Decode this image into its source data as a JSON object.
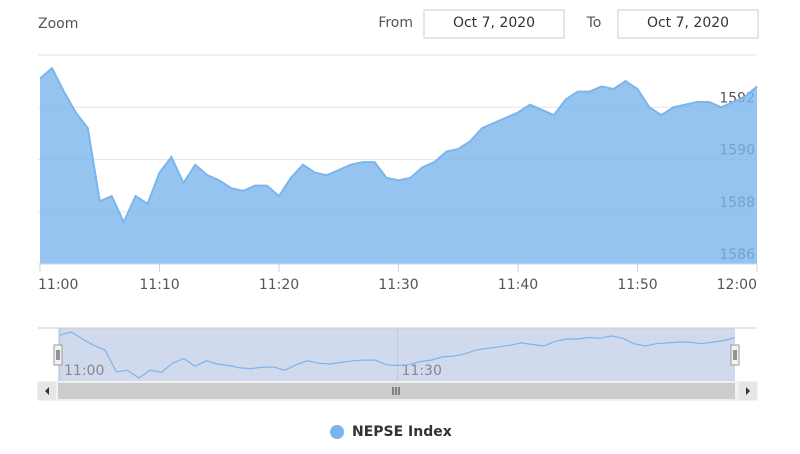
{
  "chart_data": {
    "type": "area",
    "range_selector": {
      "label": "Zoom",
      "from_label": "From",
      "from": "Oct 7, 2020",
      "to_label": "To",
      "to": "Oct 7, 2020"
    },
    "x": [
      "11:00",
      "11:01",
      "11:02",
      "11:03",
      "11:04",
      "11:05",
      "11:06",
      "11:07",
      "11:08",
      "11:09",
      "11:10",
      "11:11",
      "11:12",
      "11:13",
      "11:14",
      "11:15",
      "11:16",
      "11:17",
      "11:18",
      "11:19",
      "11:20",
      "11:21",
      "11:22",
      "11:23",
      "11:24",
      "11:25",
      "11:26",
      "11:27",
      "11:28",
      "11:29",
      "11:30",
      "11:31",
      "11:32",
      "11:33",
      "11:34",
      "11:35",
      "11:36",
      "11:37",
      "11:38",
      "11:39",
      "11:40",
      "11:41",
      "11:42",
      "11:43",
      "11:44",
      "11:45",
      "11:46",
      "11:47",
      "11:48",
      "11:49",
      "11:50",
      "11:51",
      "11:52",
      "11:53",
      "11:54",
      "11:55",
      "11:56",
      "11:57",
      "11:58",
      "11:59",
      "12:00"
    ],
    "series": [
      {
        "name": "NEPSE Index",
        "color": "#7cb5ec",
        "values": [
          1593.1,
          1593.5,
          1592.6,
          1591.8,
          1591.2,
          1588.4,
          1588.6,
          1587.6,
          1588.6,
          1588.3,
          1589.5,
          1590.1,
          1589.1,
          1589.8,
          1589.4,
          1589.2,
          1588.9,
          1588.8,
          1589.0,
          1589.0,
          1588.6,
          1589.3,
          1589.8,
          1589.5,
          1589.4,
          1589.6,
          1589.8,
          1589.9,
          1589.9,
          1589.3,
          1589.2,
          1589.3,
          1589.7,
          1589.9,
          1590.3,
          1590.4,
          1590.7,
          1591.2,
          1591.4,
          1591.6,
          1591.8,
          1592.1,
          1591.9,
          1591.7,
          1592.3,
          1592.6,
          1592.6,
          1592.8,
          1592.7,
          1593.0,
          1592.7,
          1592.0,
          1591.7,
          1592.0,
          1592.1,
          1592.2,
          1592.2,
          1592.0,
          1592.2,
          1592.4,
          1592.8
        ]
      }
    ],
    "xticks": [
      "11:00",
      "11:10",
      "11:20",
      "11:30",
      "11:40",
      "11:50",
      "12:00"
    ],
    "navigator_ticks": [
      "11:00",
      "11:30"
    ],
    "ylim": [
      1586,
      1594
    ],
    "yticks": [
      1586,
      1588,
      1590,
      1592
    ],
    "grid": true,
    "legend": "bottom"
  }
}
